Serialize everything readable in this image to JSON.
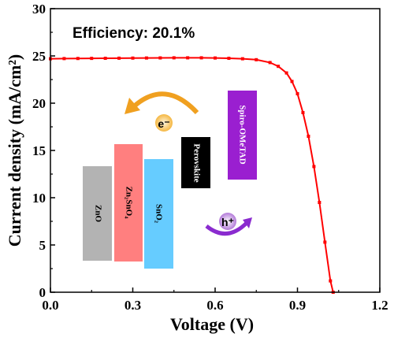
{
  "chart_data": {
    "type": "line",
    "title": "",
    "xlabel": "Voltage (V)",
    "ylabel": "Current density (mA/cm²)",
    "xlim": [
      0.0,
      1.2
    ],
    "ylim": [
      0,
      30
    ],
    "x_ticks": [
      "0.0",
      "0.3",
      "0.6",
      "0.9",
      "1.2"
    ],
    "y_ticks": [
      "0",
      "5",
      "10",
      "15",
      "20",
      "25",
      "30"
    ],
    "grid": false,
    "series": [
      {
        "color": "#ff0000",
        "marker": "square",
        "x": [
          0.0,
          0.05,
          0.1,
          0.15,
          0.2,
          0.25,
          0.3,
          0.35,
          0.4,
          0.45,
          0.5,
          0.55,
          0.6,
          0.65,
          0.7,
          0.75,
          0.8,
          0.83,
          0.86,
          0.88,
          0.9,
          0.92,
          0.94,
          0.96,
          0.98,
          1.0,
          1.02,
          1.03
        ],
        "y": [
          24.7,
          24.72,
          24.73,
          24.74,
          24.75,
          24.76,
          24.77,
          24.78,
          24.79,
          24.8,
          24.8,
          24.8,
          24.78,
          24.75,
          24.7,
          24.6,
          24.3,
          23.9,
          23.2,
          22.3,
          21.0,
          19.0,
          16.5,
          13.3,
          9.5,
          5.3,
          1.2,
          0.0
        ]
      }
    ],
    "annotations": {
      "efficiency": "Efficiency: 20.1%",
      "electron": "e⁻",
      "hole": "h⁺"
    },
    "energy_levels": [
      {
        "label": "ZnO",
        "color": "#b3b3b3",
        "text_color": "#000000"
      },
      {
        "label": "Zn₂SnO₄",
        "color": "#ff7f7f",
        "text_color": "#000000"
      },
      {
        "label": "SnO₂",
        "color": "#66ccff",
        "text_color": "#000000"
      },
      {
        "label": "Perovskite",
        "color": "#000000",
        "text_color": "#ffffff"
      },
      {
        "label": "Spiro-OMeTAD",
        "color": "#9a1fd0",
        "text_color": "#ffffff"
      }
    ]
  }
}
